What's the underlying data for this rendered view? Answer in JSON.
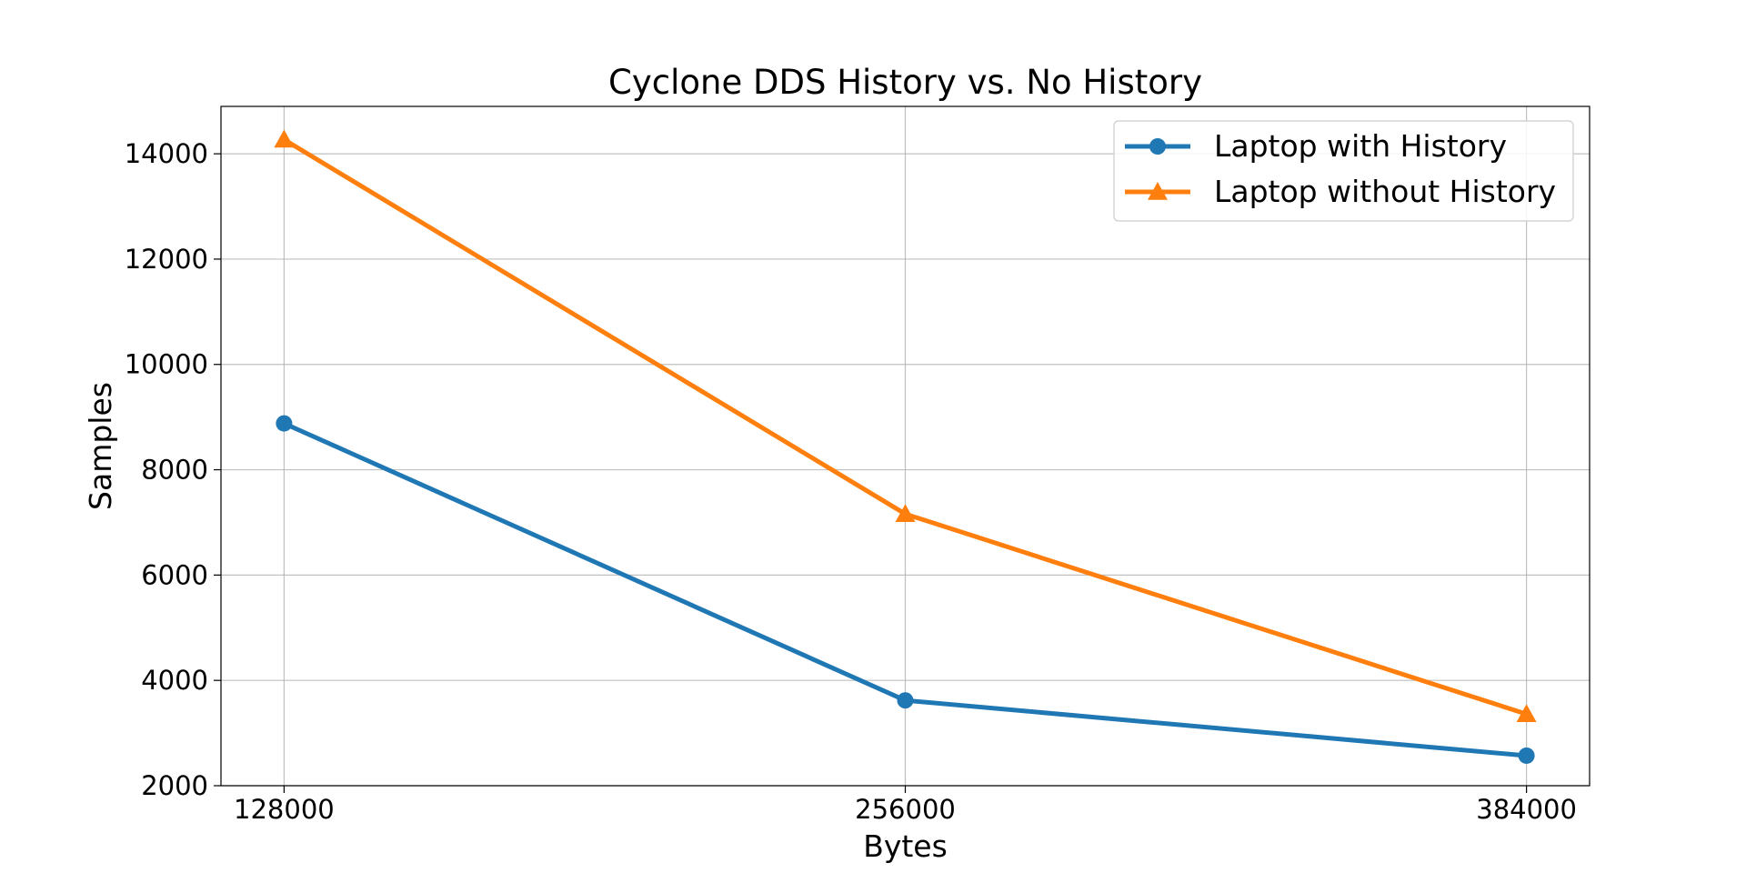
{
  "chart_data": {
    "type": "line",
    "title": "Cyclone DDS History vs. No History",
    "xlabel": "Bytes",
    "ylabel": "Samples",
    "x": [
      128000,
      256000,
      384000
    ],
    "x_tick_labels": [
      "128000",
      "256000",
      "384000"
    ],
    "xlim": [
      115000,
      397000
    ],
    "ylim": [
      2000,
      14900
    ],
    "y_ticks": [
      2000,
      4000,
      6000,
      8000,
      10000,
      12000,
      14000
    ],
    "y_tick_labels": [
      "2000",
      "4000",
      "6000",
      "8000",
      "10000",
      "12000",
      "14000"
    ],
    "grid": true,
    "legend_position": "upper right",
    "series": [
      {
        "name": "Laptop with History",
        "values": [
          8880,
          3620,
          2570
        ],
        "color": "#1f77b4",
        "marker": "circle"
      },
      {
        "name": "Laptop without History",
        "values": [
          14270,
          7160,
          3360
        ],
        "color": "#ff7f0e",
        "marker": "triangle"
      }
    ]
  }
}
